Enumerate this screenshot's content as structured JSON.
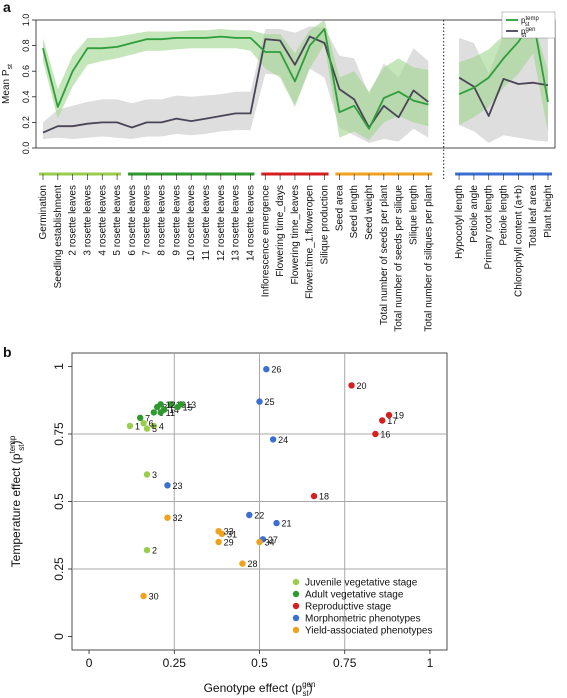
{
  "panel_labels": [
    "a",
    "b"
  ],
  "colors": {
    "temp_line": "#2e9e3a",
    "temp_band": "#9fd58e",
    "gen_line": "#4a4456",
    "gen_band": "#c8c8c8",
    "grid": "#a8a8a8",
    "group_juvenile": "#9acd4c",
    "group_adult": "#2e9a2e",
    "group_repro": "#d62020",
    "group_morph": "#3b6fd4",
    "group_yield": "#f0a21c"
  },
  "chart_data": [
    {
      "type": "line",
      "panel": "a",
      "ylabel": "Mean P",
      "ylabel_sub": "st",
      "ylim": [
        0,
        1
      ],
      "yticks": [
        "0.0",
        "0.2",
        "0.4",
        "0.6",
        "0.8",
        "1.0"
      ],
      "legend": {
        "placement": "top-right",
        "entries": [
          {
            "name": "p",
            "sup": "temp",
            "sub": "st"
          },
          {
            "name": "p",
            "sup": "gen",
            "sub": "st"
          }
        ]
      },
      "categories": [
        "Germination",
        "Seedling establishment",
        "2 rosette leaves",
        "3 rosette leaves",
        "4 rosette leaves",
        "5 rosette leaves",
        "6 rosette leaves",
        "7 rosette leaves",
        "8 rosette leaves",
        "9 rosette leaves",
        "10 rosette leaves",
        "11 rosette leaves",
        "12 rosette leaves",
        "13 rosette leaves",
        "14 rosette leaves",
        "Inflorescence emergence",
        "Flowering time_days",
        "Flowering time_leaves",
        "Flower.time_1.floweropen",
        "Silique production",
        "Seed area",
        "Seed length",
        "Seed weight",
        "Total number of seeds per plant",
        "Total number of seeds per silique",
        "Silique length",
        "Total number of siliques per plant",
        "Hypocotyl length",
        "Petiole angle",
        "Primary root length",
        "Petiole length",
        "Chlorophyll content (a+b)",
        "Total leaf area",
        "Plant height"
      ],
      "separator_after_index": 26,
      "category_groups": [
        {
          "group": "juvenile",
          "from": 0,
          "to": 5
        },
        {
          "group": "adult",
          "from": 6,
          "to": 14
        },
        {
          "group": "repro",
          "from": 15,
          "to": 19
        },
        {
          "group": "yield",
          "from": 20,
          "to": 26
        },
        {
          "group": "morph",
          "from": 27,
          "to": 33
        }
      ],
      "series": [
        {
          "key": "temp",
          "values": [
            0.78,
            0.32,
            0.6,
            0.78,
            0.78,
            0.79,
            0.82,
            0.85,
            0.85,
            0.86,
            0.86,
            0.86,
            0.87,
            0.86,
            0.86,
            0.75,
            0.75,
            0.52,
            0.8,
            0.93,
            0.28,
            0.33,
            0.15,
            0.39,
            0.44,
            0.37,
            0.34,
            0.42,
            0.47,
            0.55,
            0.7,
            0.83,
            1.0,
            0.36
          ],
          "lower": [
            0.68,
            0.23,
            0.48,
            0.65,
            0.68,
            0.7,
            0.73,
            0.76,
            0.76,
            0.77,
            0.78,
            0.78,
            0.78,
            0.78,
            0.76,
            0.62,
            0.55,
            0.32,
            0.62,
            0.81,
            0.08,
            0.13,
            0.06,
            0.2,
            0.25,
            0.2,
            0.17,
            0.18,
            0.24,
            0.32,
            0.47,
            0.58,
            0.74,
            0.12
          ],
          "upper": [
            0.86,
            0.46,
            0.72,
            0.86,
            0.86,
            0.87,
            0.89,
            0.91,
            0.91,
            0.91,
            0.92,
            0.92,
            0.93,
            0.92,
            0.92,
            0.89,
            0.89,
            0.74,
            0.92,
            1.0,
            0.55,
            0.6,
            0.44,
            0.63,
            0.7,
            0.63,
            0.61,
            0.67,
            0.71,
            0.77,
            0.88,
            0.97,
            1.0,
            0.6
          ]
        },
        {
          "key": "gen",
          "values": [
            0.12,
            0.17,
            0.17,
            0.19,
            0.2,
            0.2,
            0.16,
            0.2,
            0.2,
            0.23,
            0.21,
            0.23,
            0.25,
            0.27,
            0.27,
            0.85,
            0.84,
            0.65,
            0.87,
            0.82,
            0.46,
            0.38,
            0.16,
            0.33,
            0.24,
            0.45,
            0.36,
            0.55,
            0.48,
            0.25,
            0.54,
            0.5,
            0.51,
            0.49
          ],
          "lower": [
            0.07,
            0.08,
            0.07,
            0.08,
            0.09,
            0.08,
            0.07,
            0.09,
            0.09,
            0.11,
            0.1,
            0.11,
            0.13,
            0.14,
            0.14,
            0.58,
            0.57,
            0.34,
            0.62,
            0.55,
            0.16,
            0.1,
            0.04,
            0.07,
            0.05,
            0.15,
            0.08,
            0.18,
            0.13,
            0.04,
            0.1,
            0.08,
            0.06,
            0.05
          ],
          "upper": [
            0.2,
            0.3,
            0.33,
            0.36,
            0.38,
            0.38,
            0.35,
            0.38,
            0.38,
            0.41,
            0.4,
            0.41,
            0.42,
            0.44,
            0.44,
            0.93,
            0.93,
            0.9,
            0.95,
            0.94,
            0.72,
            0.7,
            0.42,
            0.66,
            0.55,
            0.78,
            0.68,
            0.86,
            0.82,
            0.58,
            0.88,
            0.88,
            0.9,
            0.86
          ]
        }
      ]
    },
    {
      "type": "scatter",
      "panel": "b",
      "xlabel": "Genotype effect (p",
      "xlabel_sub": "st",
      "xlabel_sup": "gen",
      "xlabel_tail": ")",
      "ylabel": "Temperature effect (p",
      "ylabel_sub": "st",
      "ylabel_sup": "temp",
      "ylabel_tail": ")",
      "xlim": [
        -0.05,
        1.05
      ],
      "ylim": [
        -0.05,
        1.05
      ],
      "xticks": [
        "0",
        "0.25",
        "0.5",
        "0.75",
        "1"
      ],
      "yticks": [
        "0",
        "0.25",
        "0.5",
        "0.75",
        "1"
      ],
      "grid": true,
      "legend": {
        "placement": "bottom-right",
        "entries": [
          {
            "group": "juvenile",
            "label": "Juvenile vegetative stage"
          },
          {
            "group": "adult",
            "label": "Adult vegetative stage"
          },
          {
            "group": "repro",
            "label": "Reproductive stage"
          },
          {
            "group": "morph",
            "label": "Morphometric phenotypes"
          },
          {
            "group": "yield",
            "label": "Yield-associated phenotypes"
          }
        ]
      },
      "points": [
        {
          "label": "1",
          "x": 0.12,
          "y": 0.78,
          "group": "juvenile"
        },
        {
          "label": "2",
          "x": 0.17,
          "y": 0.32,
          "group": "juvenile"
        },
        {
          "label": "3",
          "x": 0.17,
          "y": 0.6,
          "group": "juvenile"
        },
        {
          "label": "4",
          "x": 0.19,
          "y": 0.78,
          "group": "juvenile"
        },
        {
          "label": "5",
          "x": 0.17,
          "y": 0.77,
          "group": "juvenile"
        },
        {
          "label": "6",
          "x": 0.16,
          "y": 0.79,
          "group": "juvenile"
        },
        {
          "label": "7",
          "x": 0.15,
          "y": 0.81,
          "group": "adult"
        },
        {
          "label": "8",
          "x": 0.2,
          "y": 0.85,
          "group": "adult"
        },
        {
          "label": "9",
          "x": 0.19,
          "y": 0.83,
          "group": "adult"
        },
        {
          "label": "10",
          "x": 0.24,
          "y": 0.86,
          "group": "adult"
        },
        {
          "label": "11",
          "x": 0.21,
          "y": 0.83,
          "group": "adult"
        },
        {
          "label": "12",
          "x": 0.21,
          "y": 0.86,
          "group": "adult"
        },
        {
          "label": "13",
          "x": 0.27,
          "y": 0.86,
          "group": "adult"
        },
        {
          "label": "14",
          "x": 0.22,
          "y": 0.84,
          "group": "adult"
        },
        {
          "label": "15",
          "x": 0.26,
          "y": 0.85,
          "group": "adult"
        },
        {
          "label": "16",
          "x": 0.84,
          "y": 0.75,
          "group": "repro"
        },
        {
          "label": "17",
          "x": 0.86,
          "y": 0.8,
          "group": "repro"
        },
        {
          "label": "18",
          "x": 0.66,
          "y": 0.52,
          "group": "repro"
        },
        {
          "label": "19",
          "x": 0.88,
          "y": 0.82,
          "group": "repro"
        },
        {
          "label": "20",
          "x": 0.77,
          "y": 0.93,
          "group": "repro"
        },
        {
          "label": "21",
          "x": 0.55,
          "y": 0.42,
          "group": "morph"
        },
        {
          "label": "22",
          "x": 0.47,
          "y": 0.45,
          "group": "morph"
        },
        {
          "label": "23",
          "x": 0.23,
          "y": 0.56,
          "group": "morph"
        },
        {
          "label": "24",
          "x": 0.54,
          "y": 0.73,
          "group": "morph"
        },
        {
          "label": "25",
          "x": 0.5,
          "y": 0.87,
          "group": "morph"
        },
        {
          "label": "26",
          "x": 0.52,
          "y": 0.99,
          "group": "morph"
        },
        {
          "label": "27",
          "x": 0.51,
          "y": 0.36,
          "group": "morph"
        },
        {
          "label": "28",
          "x": 0.45,
          "y": 0.27,
          "group": "yield"
        },
        {
          "label": "29",
          "x": 0.38,
          "y": 0.35,
          "group": "yield"
        },
        {
          "label": "30",
          "x": 0.16,
          "y": 0.15,
          "group": "yield"
        },
        {
          "label": "31",
          "x": 0.39,
          "y": 0.38,
          "group": "yield"
        },
        {
          "label": "32",
          "x": 0.23,
          "y": 0.44,
          "group": "yield"
        },
        {
          "label": "33",
          "x": 0.38,
          "y": 0.39,
          "group": "yield"
        },
        {
          "label": "34",
          "x": 0.5,
          "y": 0.35,
          "group": "yield"
        }
      ]
    }
  ]
}
